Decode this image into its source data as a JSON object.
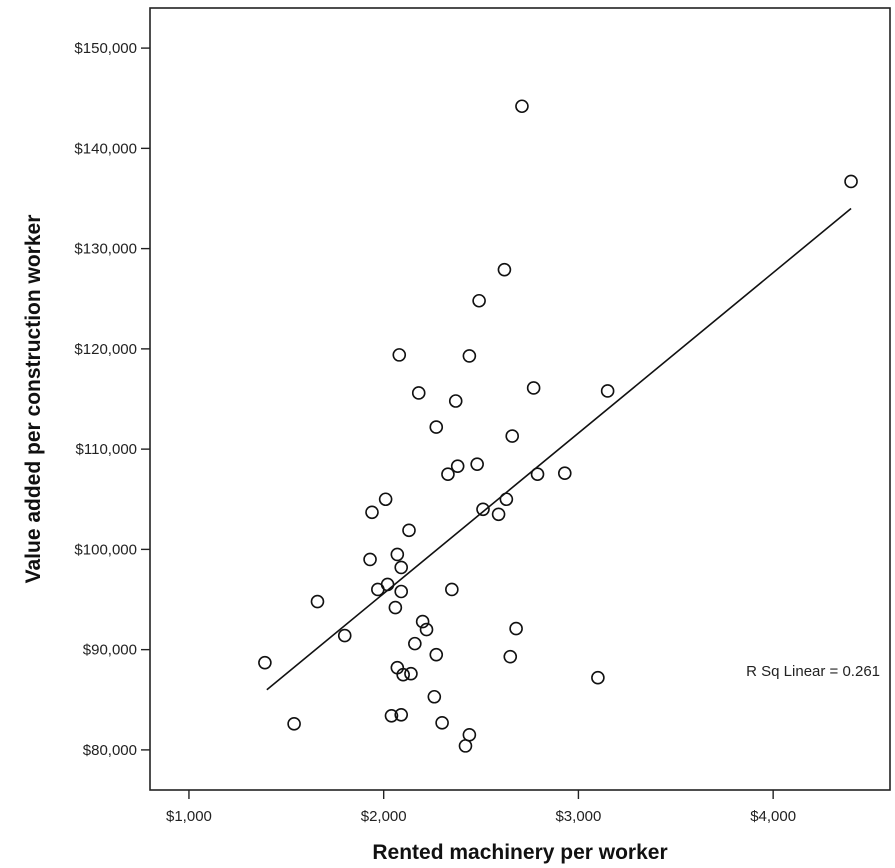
{
  "chart_data": {
    "type": "scatter",
    "xlabel": "Rented machinery per worker",
    "ylabel": "Value added per construction worker",
    "xlim": [
      800,
      4600
    ],
    "ylim": [
      76000,
      154000
    ],
    "x_ticks": [
      1000,
      2000,
      3000,
      4000
    ],
    "x_tick_labels": [
      "$1,000",
      "$2,000",
      "$3,000",
      "$4,000"
    ],
    "y_ticks": [
      80000,
      90000,
      100000,
      110000,
      120000,
      130000,
      140000,
      150000
    ],
    "y_tick_labels": [
      "$80,000",
      "$90,000",
      "$100,000",
      "$110,000",
      "$120,000",
      "$130,000",
      "$140,000",
      "$150,000"
    ],
    "grid": false,
    "annotation": "R Sq Linear = 0.261",
    "fit_line": {
      "x": [
        1400,
        4400
      ],
      "y": [
        86000,
        134000
      ]
    },
    "points": [
      [
        2710,
        144200
      ],
      [
        4400,
        136700
      ],
      [
        2620,
        127900
      ],
      [
        2490,
        124800
      ],
      [
        2080,
        119400
      ],
      [
        2440,
        119300
      ],
      [
        2770,
        116100
      ],
      [
        3150,
        115800
      ],
      [
        2180,
        115600
      ],
      [
        2370,
        114800
      ],
      [
        2270,
        112200
      ],
      [
        2660,
        111300
      ],
      [
        2380,
        108300
      ],
      [
        2480,
        108500
      ],
      [
        2330,
        107500
      ],
      [
        2790,
        107500
      ],
      [
        2930,
        107600
      ],
      [
        2010,
        105000
      ],
      [
        2630,
        105000
      ],
      [
        2510,
        104000
      ],
      [
        2590,
        103500
      ],
      [
        1940,
        103700
      ],
      [
        2130,
        101900
      ],
      [
        2070,
        99500
      ],
      [
        1930,
        99000
      ],
      [
        2090,
        98200
      ],
      [
        2020,
        96500
      ],
      [
        1970,
        96000
      ],
      [
        2090,
        95800
      ],
      [
        2350,
        96000
      ],
      [
        1660,
        94800
      ],
      [
        2060,
        94200
      ],
      [
        2200,
        92800
      ],
      [
        2220,
        92000
      ],
      [
        2680,
        92100
      ],
      [
        1800,
        91400
      ],
      [
        2160,
        90600
      ],
      [
        2270,
        89500
      ],
      [
        2650,
        89300
      ],
      [
        2070,
        88200
      ],
      [
        2100,
        87500
      ],
      [
        2140,
        87600
      ],
      [
        1390,
        88700
      ],
      [
        3100,
        87200
      ],
      [
        2260,
        85300
      ],
      [
        1540,
        82600
      ],
      [
        2300,
        82700
      ],
      [
        2040,
        83400
      ],
      [
        2090,
        83500
      ],
      [
        2440,
        81500
      ],
      [
        2420,
        80400
      ]
    ]
  }
}
